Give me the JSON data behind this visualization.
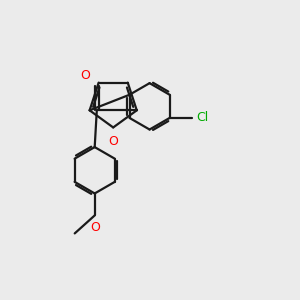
{
  "bg_color": "#ebebeb",
  "bond_color": "#1a1a1a",
  "o_color": "#ff0000",
  "cl_color": "#00aa00",
  "line_width": 1.6,
  "dbo": 0.018,
  "figsize": [
    3.0,
    3.0
  ],
  "dpi": 100,
  "xlim": [
    0.0,
    2.8
  ],
  "ylim": [
    0.0,
    2.8
  ]
}
